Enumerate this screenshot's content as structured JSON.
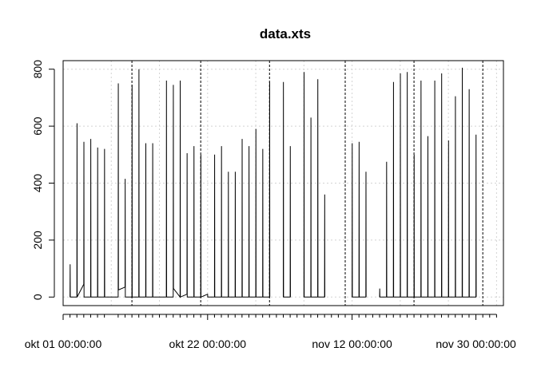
{
  "chart_data": {
    "type": "line",
    "title": "data.xts",
    "xlabel": "",
    "ylabel": "",
    "x_range": [
      "2018-10-01",
      "2018-12-04"
    ],
    "ylim": [
      -30,
      830
    ],
    "y_ticks": [
      0,
      200,
      400,
      600,
      800
    ],
    "x_tick_labels": [
      {
        "date": "2018-10-01",
        "label": "okt 01 00:00:00"
      },
      {
        "date": "2018-10-22",
        "label": "okt 22 00:00:00"
      },
      {
        "date": "2018-11-12",
        "label": "nov 12 00:00:00"
      },
      {
        "date": "2018-11-30",
        "label": "nov 30 00:00:00"
      }
    ],
    "x_minor_tick_dates": [
      "2018-10-02",
      "2018-10-03",
      "2018-10-04",
      "2018-10-05",
      "2018-10-06",
      "2018-10-07",
      "2018-10-09",
      "2018-10-10",
      "2018-10-11",
      "2018-10-12",
      "2018-10-13",
      "2018-10-14",
      "2018-10-15",
      "2018-10-16",
      "2018-10-17",
      "2018-10-18",
      "2018-10-19",
      "2018-10-20",
      "2018-10-21",
      "2018-10-23",
      "2018-10-24",
      "2018-10-25",
      "2018-10-26",
      "2018-10-27",
      "2018-10-28",
      "2018-10-29",
      "2018-10-30",
      "2018-10-31",
      "2018-11-01",
      "2018-11-02",
      "2018-11-03",
      "2018-11-04",
      "2018-11-05",
      "2018-11-06",
      "2018-11-07",
      "2018-11-08",
      "2018-11-09",
      "2018-11-10",
      "2018-11-11",
      "2018-11-13",
      "2018-11-14",
      "2018-11-15",
      "2018-11-16",
      "2018-11-17",
      "2018-11-18",
      "2018-11-19",
      "2018-11-20",
      "2018-11-21",
      "2018-11-22",
      "2018-11-23",
      "2018-11-24",
      "2018-11-25",
      "2018-11-26",
      "2018-11-27",
      "2018-11-28",
      "2018-11-29",
      "2018-12-01",
      "2018-12-02",
      "2018-12-03"
    ],
    "x_grid_dates": [
      "2018-10-01",
      "2018-10-08",
      "2018-10-15",
      "2018-10-22",
      "2018-10-29",
      "2018-11-05",
      "2018-11-12",
      "2018-11-19",
      "2018-11-26",
      "2018-12-03"
    ],
    "event_line_dates": [
      "2018-10-11",
      "2018-10-21",
      "2018-10-31",
      "2018-11-11",
      "2018-11-21",
      "2018-12-01"
    ],
    "grid": true,
    "series": [
      {
        "points": [
          [
            "2018-10-02",
            0
          ],
          [
            "2018-10-02",
            115
          ],
          [
            "2018-10-02",
            0
          ],
          [
            "2018-10-03",
            0
          ],
          [
            "2018-10-03",
            610
          ],
          [
            "2018-10-03",
            0
          ],
          [
            "2018-10-04",
            45
          ],
          [
            "2018-10-04",
            545
          ],
          [
            "2018-10-04",
            0
          ],
          [
            "2018-10-05",
            0
          ],
          [
            "2018-10-05",
            555
          ],
          [
            "2018-10-05",
            0
          ],
          [
            "2018-10-06",
            0
          ],
          [
            "2018-10-06",
            525
          ],
          [
            "2018-10-06",
            0
          ],
          [
            "2018-10-07",
            0
          ],
          [
            "2018-10-07",
            520
          ],
          [
            "2018-10-07",
            0
          ],
          [
            "2018-10-09",
            0
          ],
          [
            "2018-10-09",
            750
          ],
          [
            "2018-10-09",
            25
          ],
          [
            "2018-10-10",
            35
          ],
          [
            "2018-10-10",
            415
          ],
          [
            "2018-10-10",
            0
          ],
          [
            "2018-10-11",
            0
          ],
          [
            "2018-10-11",
            745
          ],
          [
            "2018-10-11",
            0
          ],
          [
            "2018-10-12",
            0
          ],
          [
            "2018-10-12",
            800
          ],
          [
            "2018-10-12",
            0
          ],
          [
            "2018-10-13",
            0
          ],
          [
            "2018-10-13",
            540
          ],
          [
            "2018-10-13",
            0
          ],
          [
            "2018-10-14",
            0
          ],
          [
            "2018-10-14",
            540
          ],
          [
            "2018-10-14",
            0
          ],
          [
            "2018-10-15",
            0
          ],
          [
            "2018-10-15",
            0
          ],
          [
            "2018-10-16",
            0
          ],
          [
            "2018-10-16",
            760
          ],
          [
            "2018-10-16",
            0
          ],
          [
            "2018-10-17",
            0
          ],
          [
            "2018-10-17",
            745
          ],
          [
            "2018-10-17",
            30
          ],
          [
            "2018-10-18",
            0
          ],
          [
            "2018-10-18",
            760
          ],
          [
            "2018-10-18",
            0
          ],
          [
            "2018-10-19",
            10
          ],
          [
            "2018-10-19",
            505
          ],
          [
            "2018-10-19",
            0
          ],
          [
            "2018-10-20",
            0
          ],
          [
            "2018-10-20",
            530
          ],
          [
            "2018-10-20",
            0
          ],
          [
            "2018-10-21",
            0
          ],
          [
            "2018-10-21",
            500
          ],
          [
            "2018-10-21",
            0
          ],
          [
            "2018-10-22",
            10
          ],
          [
            "2018-10-22",
            0
          ],
          [
            "2018-10-23",
            0
          ],
          [
            "2018-10-23",
            500
          ],
          [
            "2018-10-23",
            0
          ],
          [
            "2018-10-24",
            0
          ],
          [
            "2018-10-24",
            530
          ],
          [
            "2018-10-24",
            0
          ],
          [
            "2018-10-25",
            0
          ],
          [
            "2018-10-25",
            440
          ],
          [
            "2018-10-25",
            0
          ],
          [
            "2018-10-26",
            0
          ],
          [
            "2018-10-26",
            440
          ],
          [
            "2018-10-26",
            0
          ],
          [
            "2018-10-27",
            0
          ],
          [
            "2018-10-27",
            555
          ],
          [
            "2018-10-27",
            0
          ],
          [
            "2018-10-28",
            0
          ],
          [
            "2018-10-28",
            530
          ],
          [
            "2018-10-28",
            0
          ],
          [
            "2018-10-29",
            0
          ],
          [
            "2018-10-29",
            590
          ],
          [
            "2018-10-29",
            0
          ],
          [
            "2018-10-30",
            0
          ],
          [
            "2018-10-30",
            520
          ],
          [
            "2018-10-30",
            0
          ],
          [
            "2018-10-31",
            0
          ],
          [
            "2018-10-31",
            755
          ],
          [
            "2018-10-31",
            0
          ]
        ]
      },
      {
        "points": [
          [
            "2018-11-02",
            0
          ],
          [
            "2018-11-02",
            755
          ],
          [
            "2018-11-02",
            0
          ],
          [
            "2018-11-03",
            0
          ],
          [
            "2018-11-03",
            530
          ],
          [
            "2018-11-03",
            0
          ]
        ]
      },
      {
        "points": [
          [
            "2018-11-05",
            0
          ],
          [
            "2018-11-05",
            790
          ],
          [
            "2018-11-05",
            0
          ],
          [
            "2018-11-06",
            0
          ],
          [
            "2018-11-06",
            630
          ],
          [
            "2018-11-06",
            0
          ],
          [
            "2018-11-07",
            0
          ],
          [
            "2018-11-07",
            765
          ],
          [
            "2018-11-07",
            0
          ],
          [
            "2018-11-08",
            0
          ],
          [
            "2018-11-08",
            360
          ],
          [
            "2018-11-08",
            0
          ]
        ]
      },
      {
        "points": [
          [
            "2018-11-12",
            0
          ],
          [
            "2018-11-12",
            540
          ],
          [
            "2018-11-12",
            0
          ],
          [
            "2018-11-13",
            0
          ],
          [
            "2018-11-13",
            545
          ],
          [
            "2018-11-13",
            0
          ],
          [
            "2018-11-14",
            0
          ],
          [
            "2018-11-14",
            440
          ],
          [
            "2018-11-14",
            0
          ]
        ]
      },
      {
        "points": [
          [
            "2018-11-16",
            0
          ],
          [
            "2018-11-16",
            30
          ],
          [
            "2018-11-16",
            0
          ],
          [
            "2018-11-17",
            0
          ],
          [
            "2018-11-17",
            475
          ],
          [
            "2018-11-17",
            0
          ],
          [
            "2018-11-18",
            0
          ],
          [
            "2018-11-18",
            755
          ],
          [
            "2018-11-18",
            0
          ],
          [
            "2018-11-19",
            0
          ],
          [
            "2018-11-19",
            785
          ],
          [
            "2018-11-19",
            0
          ],
          [
            "2018-11-20",
            0
          ],
          [
            "2018-11-20",
            790
          ],
          [
            "2018-11-20",
            0
          ],
          [
            "2018-11-21",
            0
          ],
          [
            "2018-11-21",
            500
          ],
          [
            "2018-11-21",
            0
          ],
          [
            "2018-11-22",
            0
          ],
          [
            "2018-11-22",
            760
          ],
          [
            "2018-11-22",
            0
          ],
          [
            "2018-11-23",
            0
          ],
          [
            "2018-11-23",
            565
          ],
          [
            "2018-11-23",
            0
          ],
          [
            "2018-11-24",
            0
          ],
          [
            "2018-11-24",
            760
          ],
          [
            "2018-11-24",
            0
          ],
          [
            "2018-11-25",
            0
          ],
          [
            "2018-11-25",
            785
          ],
          [
            "2018-11-25",
            0
          ],
          [
            "2018-11-26",
            0
          ],
          [
            "2018-11-26",
            550
          ],
          [
            "2018-11-26",
            0
          ],
          [
            "2018-11-27",
            0
          ],
          [
            "2018-11-27",
            705
          ],
          [
            "2018-11-27",
            0
          ],
          [
            "2018-11-28",
            0
          ],
          [
            "2018-11-28",
            805
          ],
          [
            "2018-11-28",
            0
          ],
          [
            "2018-11-29",
            0
          ],
          [
            "2018-11-29",
            730
          ],
          [
            "2018-11-29",
            0
          ],
          [
            "2018-11-30",
            0
          ],
          [
            "2018-11-30",
            570
          ],
          [
            "2018-11-30",
            0
          ]
        ]
      }
    ]
  }
}
